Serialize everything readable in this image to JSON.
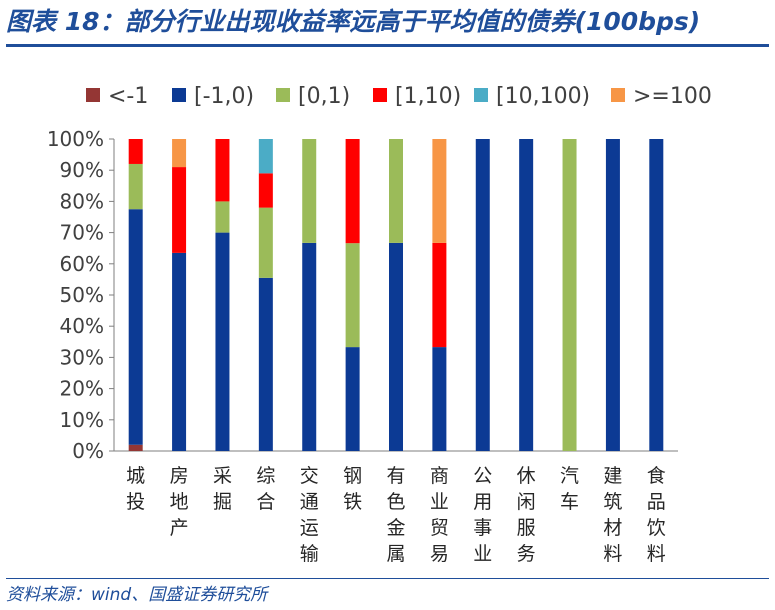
{
  "header": {
    "title": "图表 18：部分行业出现收益率远高于平均值的债券(100bps)"
  },
  "footer": {
    "source": "资料来源：wind、国盛证券研究所"
  },
  "chart_data": {
    "type": "bar",
    "stacked": true,
    "title": "图表 18：部分行业出现收益率远高于平均值的债券(100bps)",
    "xlabel": "",
    "ylabel": "",
    "ylim": [
      0,
      100
    ],
    "y_unit": "%",
    "y_ticks": [
      "0%",
      "10%",
      "20%",
      "30%",
      "40%",
      "50%",
      "60%",
      "70%",
      "80%",
      "90%",
      "100%"
    ],
    "legend_position": "top",
    "categories": [
      "城投",
      "房地产",
      "采掘",
      "综合",
      "交通运输",
      "钢铁",
      "有色金属",
      "商业贸易",
      "公用事业",
      "休闲服务",
      "汽车",
      "建筑材料",
      "食品饮料"
    ],
    "series": [
      {
        "name": "<-1",
        "color": "#943634",
        "values": [
          2,
          0,
          0,
          0,
          0,
          0,
          0,
          0,
          0,
          0,
          0,
          0,
          0
        ]
      },
      {
        "name": "[-1,0)",
        "color": "#0c3a94",
        "values": [
          75.5,
          63.5,
          70,
          55.5,
          66.7,
          33.3,
          66.7,
          33.3,
          100,
          100,
          0,
          100,
          100
        ]
      },
      {
        "name": "[0,1)",
        "color": "#9bbb59",
        "values": [
          14.5,
          0,
          10,
          22.5,
          33.3,
          33.3,
          33.3,
          0,
          0,
          0,
          100,
          0,
          0
        ]
      },
      {
        "name": "[1,10)",
        "color": "#ff0000",
        "values": [
          8,
          27.5,
          20,
          11,
          0,
          33.4,
          0,
          33.4,
          0,
          0,
          0,
          0,
          0
        ]
      },
      {
        "name": "[10,100)",
        "color": "#4bacc6",
        "values": [
          0,
          0,
          0,
          11,
          0,
          0,
          0,
          0,
          0,
          0,
          0,
          0,
          0
        ]
      },
      {
        "name": ">=100",
        "color": "#f79646",
        "values": [
          0,
          9,
          0,
          0,
          0,
          0,
          0,
          33.3,
          0,
          0,
          0,
          0,
          0
        ]
      }
    ]
  }
}
